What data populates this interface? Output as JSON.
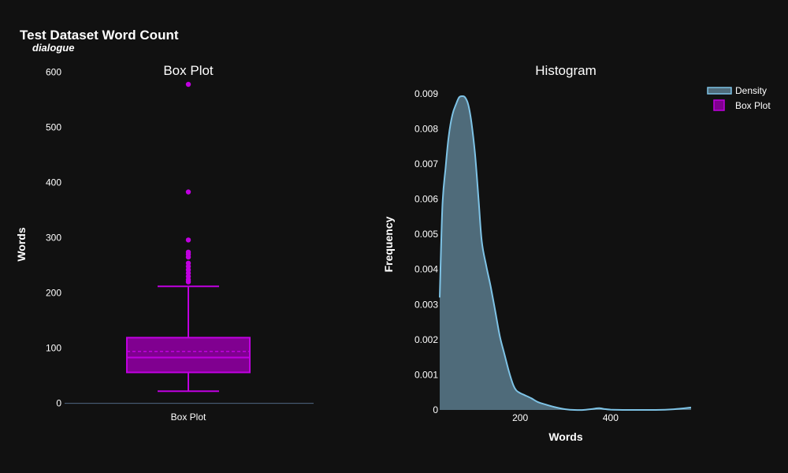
{
  "title": "Test Dataset Word Count",
  "subtitle": "dialogue",
  "colors": {
    "background": "#111111",
    "box": "#c000e0",
    "box_fill": "#800090",
    "density_line": "#7ec3e6",
    "density_fill": "#4f6b7a",
    "axis_line": "#506784"
  },
  "legend": {
    "items": [
      {
        "label": "Density",
        "icon": "density-swatch-icon"
      },
      {
        "label": "Box Plot",
        "icon": "box-swatch-icon"
      }
    ],
    "placement": "top-right"
  },
  "chart_data": [
    {
      "type": "box",
      "title": "Box Plot",
      "xlabel": "",
      "ylabel": "Words",
      "category": "Box Plot",
      "ylim": [
        -12,
        608
      ],
      "yticks": [
        0,
        100,
        200,
        300,
        400,
        500,
        600
      ],
      "stats": {
        "lower_fence": 22,
        "q1": 56,
        "median": 83,
        "mean": 94,
        "q3": 119,
        "upper_fence": 212
      },
      "outliers": [
        220,
        224,
        230,
        236,
        242,
        248,
        254,
        265,
        270,
        274,
        296,
        383,
        578
      ],
      "grid": false
    },
    {
      "type": "area",
      "title": "Histogram",
      "xlabel": "Words",
      "ylabel": "Frequency",
      "xlim": [
        22,
        578
      ],
      "ylim": [
        0,
        0.0092
      ],
      "xticks": [
        200,
        400
      ],
      "yticks": [
        0,
        0.001,
        0.002,
        0.003,
        0.004,
        0.005,
        0.006,
        0.007,
        0.008,
        0.009
      ],
      "ytick_labels": [
        "0",
        "0.001",
        "0.002",
        "0.003",
        "0.004",
        "0.005",
        "0.006",
        "0.007",
        "0.008",
        "0.009"
      ],
      "series": [
        {
          "name": "Density",
          "x": [
            22,
            28,
            35,
            42,
            50,
            58,
            65,
            72,
            78,
            85,
            92,
            100,
            108,
            115,
            125,
            135,
            145,
            155,
            165,
            175,
            185,
            192,
            200,
            210,
            225,
            240,
            260,
            280,
            300,
            320,
            340,
            360,
            375,
            385,
            400,
            430,
            460,
            500,
            540,
            578
          ],
          "y": [
            0.0032,
            0.0058,
            0.0069,
            0.0078,
            0.0084,
            0.0087,
            0.0089,
            0.00893,
            0.0089,
            0.0087,
            0.0082,
            0.0073,
            0.006,
            0.0048,
            0.0041,
            0.0035,
            0.0028,
            0.0021,
            0.0016,
            0.0011,
            0.0007,
            0.00055,
            0.00048,
            0.00042,
            0.00033,
            0.00022,
            0.00014,
            7e-05,
            2e-05,
            0.0,
            0.0,
            3e-05,
            5e-05,
            3e-05,
            1e-05,
            0.0,
            0.0,
            0.0,
            2e-05,
            7e-05
          ]
        }
      ],
      "grid": false
    }
  ]
}
